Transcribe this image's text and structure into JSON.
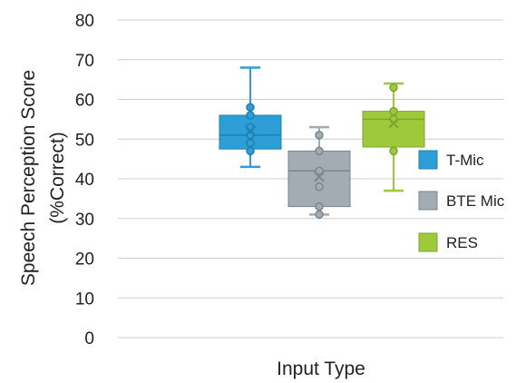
{
  "chart_data": {
    "type": "box",
    "title": "",
    "xlabel": "Input Type",
    "ylabel_line1": "Speech Perception Score",
    "ylabel_line2": "(%Correct)",
    "ylim": [
      0,
      80
    ],
    "yticks": [
      0,
      10,
      20,
      30,
      40,
      50,
      60,
      70,
      80
    ],
    "grid": true,
    "legend_position": "right",
    "series": [
      {
        "name": "T-Mic",
        "color": "#2e9fd6",
        "stroke": "#1f7fb0",
        "whisker_low": 43,
        "q1": 47.5,
        "median": 51,
        "q3": 56,
        "whisker_high": 68,
        "mean": 52,
        "points": [
          47,
          49,
          51,
          53,
          56,
          58
        ]
      },
      {
        "name": "BTE Mic",
        "color": "#a3abb3",
        "stroke": "#7a8690",
        "whisker_low": 31,
        "q1": 33,
        "median": 42,
        "q3": 47,
        "whisker_high": 53,
        "mean": 40.5,
        "points": [
          31,
          33,
          38,
          42,
          47,
          51
        ]
      },
      {
        "name": "RES",
        "color": "#9dc93b",
        "stroke": "#7fa52a",
        "whisker_low": 37,
        "q1": 48,
        "median": 55,
        "q3": 57,
        "whisker_high": 64,
        "mean": 54,
        "points": [
          47,
          55,
          57,
          63
        ]
      }
    ]
  }
}
